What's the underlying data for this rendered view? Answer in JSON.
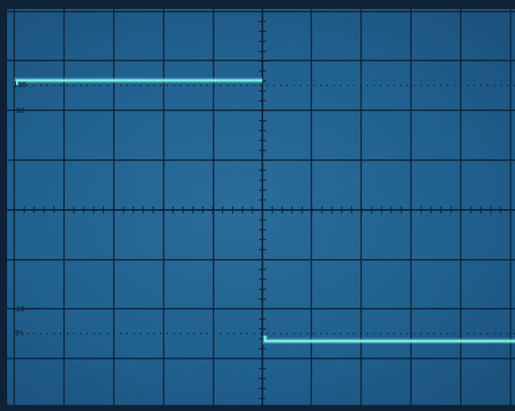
{
  "scope": {
    "labels": {
      "level_100": "100",
      "level_90": "90",
      "level_10": "10",
      "level_0": "0%"
    },
    "trace": {
      "color": "#7ff3e6",
      "shape": "square-wave",
      "high_level_percent": 102,
      "low_level_percent": -3
    }
  }
}
